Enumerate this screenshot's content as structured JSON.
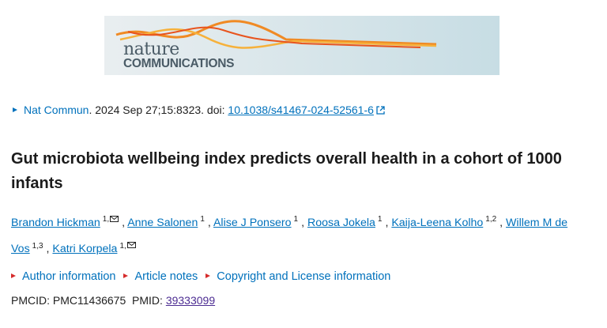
{
  "logo": {
    "line1": "nature",
    "line2": "COMMUNICATIONS"
  },
  "citation": {
    "journal": "Nat Commun",
    "details": ". 2024 Sep 27;15:8323. doi: ",
    "doi": "10.1038/s41467-024-52561-6"
  },
  "title": "Gut microbiota wellbeing index predicts overall health in a cohort of 1000 infants",
  "authors": [
    {
      "name": "Brandon Hickman",
      "aff": "1,",
      "corresponding": true
    },
    {
      "name": "Anne Salonen",
      "aff": "1"
    },
    {
      "name": "Alise J Ponsero",
      "aff": "1"
    },
    {
      "name": "Roosa Jokela",
      "aff": "1"
    },
    {
      "name": "Kaija-Leena Kolho",
      "aff": "1,2"
    },
    {
      "name": "Willem M de Vos",
      "aff": "1,3"
    },
    {
      "name": "Katri Korpela",
      "aff": "1,",
      "corresponding": true
    }
  ],
  "links": [
    "Author information",
    "Article notes",
    "Copyright and License information"
  ],
  "ids": {
    "pmcid_label": "PMCID:",
    "pmcid": "PMC11436675",
    "pmid_label": "PMID:",
    "pmid": "39333099"
  }
}
